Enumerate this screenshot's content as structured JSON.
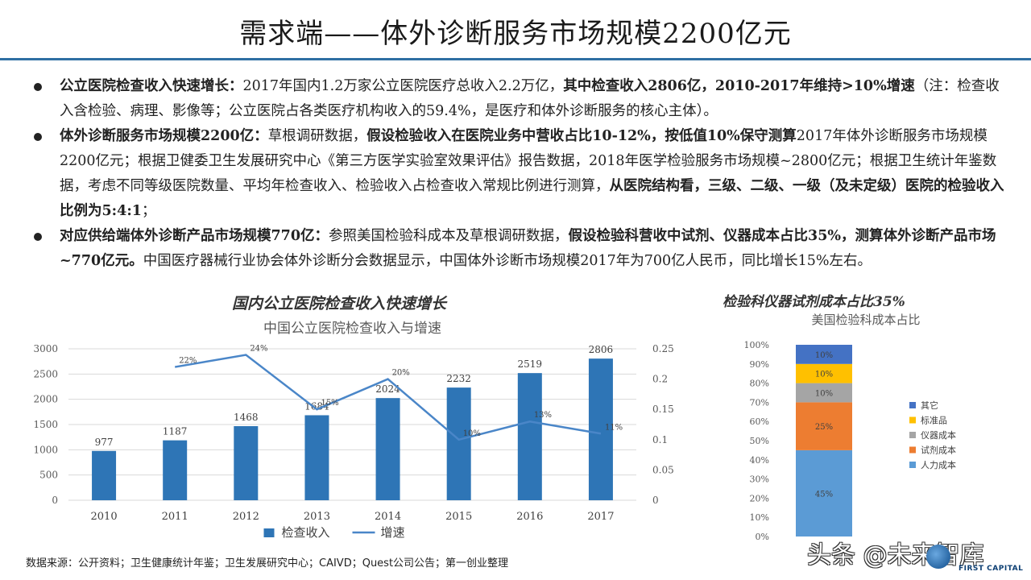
{
  "title": "需求端——体外诊断服务市场规模2200亿元",
  "bullets": [
    {
      "segments": [
        {
          "text": "公立医院检查收入快速增长：",
          "bold": true
        },
        {
          "text": "2017年国内1.2万家公立医院医疗总收入2.2万亿，",
          "bold": false
        },
        {
          "text": "其中检查收入2806亿，2010-2017年维持>10%增速",
          "bold": true
        },
        {
          "text": "（注：检查收入含检验、病理、影像等；公立医院占各类医疗机构收入的59.4%，是医疗和体外诊断服务的核心主体）。",
          "bold": false
        }
      ]
    },
    {
      "segments": [
        {
          "text": "体外诊断服务市场规模2200亿：",
          "bold": true
        },
        {
          "text": "草根调研数据，",
          "bold": false
        },
        {
          "text": "假设检验收入在医院业务中营收占比10-12%，按低值10%保守测算",
          "bold": true
        },
        {
          "text": "2017年体外诊断服务市场规模2200亿元；根据卫健委卫生发展研究中心《第三方医学实验室效果评估》报告数据，2018年医学检验服务市场规模~2800亿元；根据卫生统计年鉴数据，考虑不同等级医院数量、平均年检查收入、检验收入占检查收入常规比例进行测算，",
          "bold": false
        },
        {
          "text": "从医院结构看，三级、二级、一级（及未定级）医院的检验收入比例为5:4:1",
          "bold": true
        },
        {
          "text": "；",
          "bold": false
        }
      ]
    },
    {
      "segments": [
        {
          "text": "对应供给端体外诊断产品市场规模770亿：",
          "bold": true
        },
        {
          "text": "参照美国检验科成本及草根调研数据，",
          "bold": false
        },
        {
          "text": "假设检验科营收中试剂、仪器成本占比35%，测算体外诊断产品市场~770亿元。",
          "bold": true
        },
        {
          "text": "中国医疗器械行业协会体外诊断分会数据显示，中国体外诊断市场规模2017年为700亿人民币，同比增长15%左右。",
          "bold": false
        }
      ]
    }
  ],
  "left_heading": "国内公立医院检查收入快速增长",
  "right_heading": "检验科仪器试剂成本占比35%",
  "source": "数据来源：公开资料；卫生健康统计年鉴；卫生发展研究中心；CAIVD；Quest公司公告；第一创业整理",
  "watermark": "头条 @未来智库",
  "logo_text": "FIRST CAPITAL",
  "colors": {
    "bar": "#2e75b6",
    "line": "#4a86c8",
    "title_rule": "#2f6fa3",
    "stack": [
      "#5b9bd5",
      "#ed7d31",
      "#a5a5a5",
      "#ffc000",
      "#4472c4"
    ]
  },
  "chart_data": [
    {
      "type": "bar",
      "title": "中国公立医院检查收入与增速",
      "categories": [
        "2010",
        "2011",
        "2012",
        "2013",
        "2014",
        "2015",
        "2016",
        "2017"
      ],
      "series": [
        {
          "name": "检查收入",
          "type": "bar",
          "axis": "left",
          "values": [
            977,
            1187,
            1468,
            1684,
            2024,
            2232,
            2519,
            2806
          ],
          "labels": [
            "977",
            "1187",
            "1468",
            "1684",
            "2024",
            "2232",
            "2519",
            "2806"
          ]
        },
        {
          "name": "增速",
          "type": "line",
          "axis": "right",
          "values": [
            null,
            0.22,
            0.24,
            0.15,
            0.2,
            0.1,
            0.13,
            0.11
          ],
          "labels": [
            "",
            "22%",
            "24%",
            "15%",
            "20%",
            "10%",
            "13%",
            "11%"
          ]
        }
      ],
      "ylim_left": [
        0,
        3000
      ],
      "yticks_left": [
        "0",
        "500",
        "1000",
        "1500",
        "2000",
        "2500",
        "3000"
      ],
      "ylim_right": [
        0,
        0.25
      ],
      "yticks_right": [
        "0",
        "0.05",
        "0.1",
        "0.15",
        "0.2",
        "0.25"
      ],
      "grid": true,
      "legend": "bottom"
    },
    {
      "type": "bar",
      "stacked": true,
      "title": "美国检验科成本占比",
      "categories": [
        ""
      ],
      "series": [
        {
          "name": "人力成本",
          "values": [
            45
          ],
          "label": "45%"
        },
        {
          "name": "试剂成本",
          "values": [
            25
          ],
          "label": "25%"
        },
        {
          "name": "仪器成本",
          "values": [
            10
          ],
          "label": "10%"
        },
        {
          "name": "标准品",
          "values": [
            10
          ],
          "label": "10%"
        },
        {
          "name": "其它",
          "values": [
            10
          ],
          "label": "10%"
        }
      ],
      "ylim": [
        0,
        100
      ],
      "yticks": [
        "0%",
        "10%",
        "20%",
        "30%",
        "40%",
        "50%",
        "60%",
        "70%",
        "80%",
        "90%",
        "100%"
      ],
      "grid": false,
      "legend": "right"
    }
  ]
}
